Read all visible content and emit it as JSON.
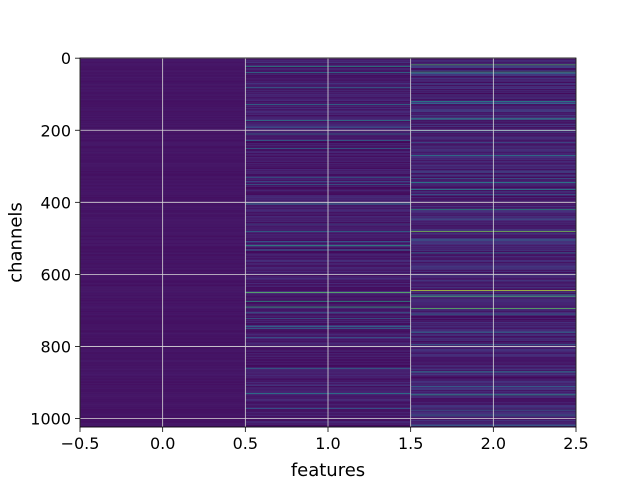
{
  "chart_data": {
    "type": "heatmap",
    "title": "",
    "xlabel": "features",
    "ylabel": "channels",
    "x_columns": [
      0,
      1,
      2
    ],
    "x_range": [
      -0.5,
      2.5
    ],
    "y_range": [
      1023.5,
      -0.5
    ],
    "y_inverted": true,
    "rows": 1024,
    "grid": true,
    "colormap": "viridis",
    "x_ticks": [
      {
        "value": -0.5,
        "label": "−0.5"
      },
      {
        "value": 0.0,
        "label": "0.0"
      },
      {
        "value": 0.5,
        "label": "0.5"
      },
      {
        "value": 1.0,
        "label": "1.0"
      },
      {
        "value": 1.5,
        "label": "1.5"
      },
      {
        "value": 2.0,
        "label": "2.0"
      },
      {
        "value": 2.5,
        "label": "2.5"
      }
    ],
    "y_ticks": [
      {
        "value": 0,
        "label": "0"
      },
      {
        "value": 200,
        "label": "200"
      },
      {
        "value": 400,
        "label": "400"
      },
      {
        "value": 600,
        "label": "600"
      },
      {
        "value": 800,
        "label": "800"
      },
      {
        "value": 1000,
        "label": "1000"
      }
    ],
    "column_profile": [
      {
        "column": 0,
        "base_level": 0.06,
        "variation": 0.03,
        "bright_rows": []
      },
      {
        "column": 1,
        "base_level": 0.08,
        "variation": 0.12,
        "bright_rows": [
          {
            "channel": 22,
            "level": 0.55
          },
          {
            "channel": 40,
            "level": 0.45
          },
          {
            "channel": 82,
            "level": 0.4
          },
          {
            "channel": 128,
            "level": 0.4
          },
          {
            "channel": 172,
            "level": 0.45
          },
          {
            "channel": 210,
            "level": 0.4
          },
          {
            "channel": 250,
            "level": 0.35
          },
          {
            "channel": 330,
            "level": 0.35
          },
          {
            "channel": 405,
            "level": 0.45
          },
          {
            "channel": 480,
            "level": 0.4
          },
          {
            "channel": 520,
            "level": 0.6
          },
          {
            "channel": 650,
            "level": 0.75
          },
          {
            "channel": 675,
            "level": 0.6
          },
          {
            "channel": 690,
            "level": 0.65
          },
          {
            "channel": 750,
            "level": 0.35
          },
          {
            "channel": 860,
            "level": 0.4
          },
          {
            "channel": 930,
            "level": 0.45
          }
        ]
      },
      {
        "column": 2,
        "base_level": 0.1,
        "variation": 0.16,
        "bright_rows": [
          {
            "channel": 18,
            "level": 0.7
          },
          {
            "channel": 38,
            "level": 0.65
          },
          {
            "channel": 120,
            "level": 0.5
          },
          {
            "channel": 168,
            "level": 0.55
          },
          {
            "channel": 200,
            "level": 0.45
          },
          {
            "channel": 270,
            "level": 0.45
          },
          {
            "channel": 345,
            "level": 0.5
          },
          {
            "channel": 365,
            "level": 0.45
          },
          {
            "channel": 420,
            "level": 0.55
          },
          {
            "channel": 480,
            "level": 0.8
          },
          {
            "channel": 540,
            "level": 0.4
          },
          {
            "channel": 645,
            "level": 0.9
          },
          {
            "channel": 660,
            "level": 0.7
          },
          {
            "channel": 695,
            "level": 0.75
          },
          {
            "channel": 760,
            "level": 0.4
          },
          {
            "channel": 870,
            "level": 0.45
          },
          {
            "channel": 935,
            "level": 0.55
          },
          {
            "channel": 990,
            "level": 0.4
          }
        ]
      }
    ]
  }
}
